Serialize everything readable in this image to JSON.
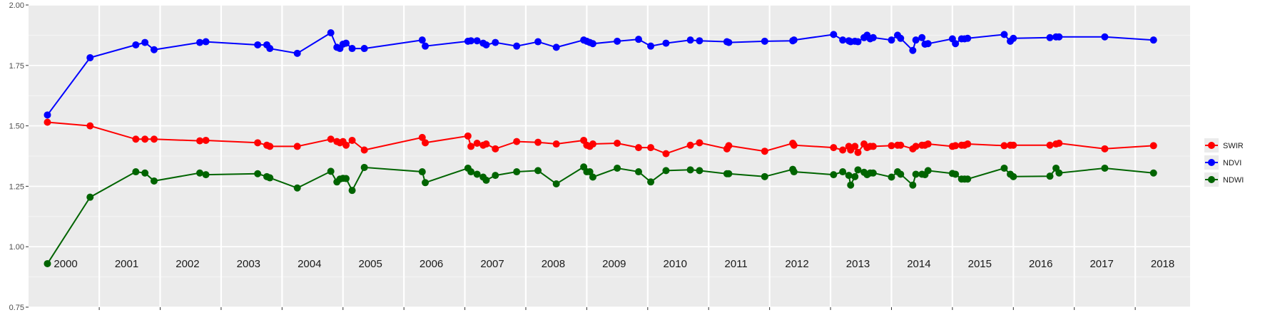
{
  "chart_data": {
    "type": "line",
    "title": "",
    "xlabel": "",
    "ylabel": "",
    "ylim": [
      0.75,
      2.0
    ],
    "yticks": [
      "0.75",
      "1.00",
      "1.25",
      "1.50",
      "1.75",
      "2.00"
    ],
    "years": [
      "2000",
      "2001",
      "2002",
      "2003",
      "2004",
      "2005",
      "2006",
      "2007",
      "2008",
      "2009",
      "2010",
      "2011",
      "2012",
      "2013",
      "2014",
      "2015",
      "2016",
      "2017",
      "2018"
    ],
    "x": [
      2000.15,
      2000.85,
      2001.6,
      2001.75,
      2001.9,
      2002.65,
      2002.75,
      2003.6,
      2003.75,
      2003.8,
      2004.25,
      2004.8,
      2004.9,
      2004.95,
      2005.0,
      2005.05,
      2005.15,
      2005.35,
      2006.3,
      2006.35,
      2007.05,
      2007.1,
      2007.2,
      2007.3,
      2007.35,
      2007.5,
      2007.85,
      2008.2,
      2008.5,
      2008.95,
      2009.0,
      2009.05,
      2009.1,
      2009.5,
      2009.85,
      2010.05,
      2010.3,
      2010.7,
      2010.85,
      2011.3,
      2011.33,
      2011.92,
      2012.38,
      2012.4,
      2013.05,
      2013.2,
      2013.3,
      2013.33,
      2013.4,
      2013.45,
      2013.55,
      2013.6,
      2013.65,
      2013.7,
      2014.0,
      2014.1,
      2014.15,
      2014.35,
      2014.4,
      2014.5,
      2014.55,
      2014.6,
      2015.0,
      2015.05,
      2015.15,
      2015.2,
      2015.25,
      2015.85,
      2015.95,
      2016.0,
      2016.6,
      2016.7,
      2016.75,
      2017.5,
      2018.3
    ],
    "series": [
      {
        "name": "SWIR",
        "color": "#ff0000",
        "values": [
          1.515,
          1.5,
          1.445,
          1.445,
          1.445,
          1.438,
          1.44,
          1.43,
          1.42,
          1.415,
          1.415,
          1.445,
          1.435,
          1.43,
          1.435,
          1.42,
          1.44,
          1.4,
          1.452,
          1.43,
          1.458,
          1.415,
          1.428,
          1.42,
          1.425,
          1.405,
          1.435,
          1.432,
          1.425,
          1.44,
          1.42,
          1.415,
          1.425,
          1.428,
          1.41,
          1.41,
          1.385,
          1.42,
          1.43,
          1.405,
          1.418,
          1.395,
          1.428,
          1.42,
          1.41,
          1.4,
          1.415,
          1.4,
          1.415,
          1.39,
          1.425,
          1.41,
          1.415,
          1.415,
          1.418,
          1.42,
          1.42,
          1.405,
          1.415,
          1.42,
          1.42,
          1.425,
          1.415,
          1.418,
          1.42,
          1.42,
          1.425,
          1.418,
          1.42,
          1.42,
          1.42,
          1.425,
          1.428,
          1.405,
          1.418
        ]
      },
      {
        "name": "NDVI",
        "color": "#0000ff",
        "values": [
          1.545,
          1.782,
          1.835,
          1.845,
          1.815,
          1.845,
          1.848,
          1.835,
          1.835,
          1.82,
          1.8,
          1.885,
          1.825,
          1.82,
          1.838,
          1.842,
          1.82,
          1.82,
          1.855,
          1.83,
          1.85,
          1.852,
          1.852,
          1.842,
          1.835,
          1.845,
          1.83,
          1.848,
          1.825,
          1.855,
          1.85,
          1.845,
          1.84,
          1.85,
          1.858,
          1.83,
          1.842,
          1.855,
          1.852,
          1.848,
          1.845,
          1.85,
          1.852,
          1.855,
          1.878,
          1.855,
          1.852,
          1.848,
          1.85,
          1.848,
          1.865,
          1.875,
          1.86,
          1.865,
          1.855,
          1.875,
          1.862,
          1.812,
          1.855,
          1.865,
          1.838,
          1.84,
          1.86,
          1.84,
          1.86,
          1.86,
          1.862,
          1.878,
          1.85,
          1.862,
          1.865,
          1.868,
          1.868,
          1.868,
          1.855
        ]
      },
      {
        "name": "NDWI",
        "color": "#006400",
        "values": [
          0.93,
          1.205,
          1.31,
          1.305,
          1.272,
          1.305,
          1.298,
          1.302,
          1.29,
          1.285,
          1.243,
          1.312,
          1.268,
          1.28,
          1.283,
          1.282,
          1.233,
          1.328,
          1.31,
          1.265,
          1.325,
          1.31,
          1.3,
          1.288,
          1.275,
          1.295,
          1.31,
          1.315,
          1.26,
          1.33,
          1.31,
          1.31,
          1.288,
          1.325,
          1.31,
          1.268,
          1.315,
          1.318,
          1.315,
          1.302,
          1.302,
          1.29,
          1.32,
          1.31,
          1.298,
          1.31,
          1.295,
          1.255,
          1.29,
          1.318,
          1.308,
          1.298,
          1.305,
          1.305,
          1.288,
          1.31,
          1.3,
          1.255,
          1.3,
          1.3,
          1.298,
          1.315,
          1.303,
          1.3,
          1.28,
          1.28,
          1.28,
          1.325,
          1.3,
          1.29,
          1.292,
          1.325,
          1.305,
          1.325,
          1.305
        ]
      }
    ],
    "legend_position": "right",
    "grid": true
  }
}
